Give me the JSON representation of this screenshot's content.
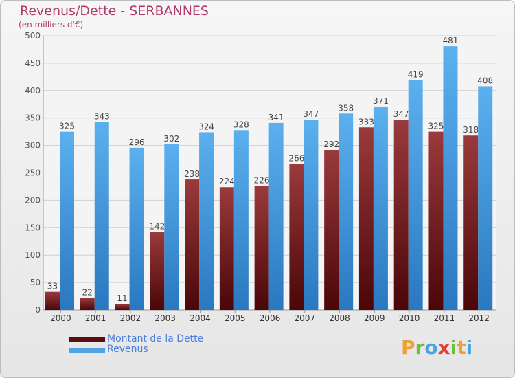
{
  "chart_data": {
    "type": "bar",
    "title": "Revenus/Dette - SERBANNES",
    "subtitle": "(en milliers d'€)",
    "categories": [
      "2000",
      "2001",
      "2002",
      "2003",
      "2004",
      "2005",
      "2006",
      "2007",
      "2008",
      "2009",
      "2010",
      "2011",
      "2012"
    ],
    "series": [
      {
        "name": "Montant de la Dette",
        "color": "#7a1f23",
        "values": [
          33,
          22,
          11,
          142,
          238,
          224,
          226,
          266,
          292,
          333,
          347,
          325,
          318
        ]
      },
      {
        "name": "Revenus",
        "color": "#4ea3e4",
        "values": [
          325,
          343,
          296,
          302,
          324,
          328,
          341,
          347,
          358,
          371,
          419,
          481,
          408
        ]
      }
    ],
    "ylim": [
      0,
      500
    ],
    "yticks": [
      0,
      50,
      100,
      150,
      200,
      250,
      300,
      350,
      400,
      450,
      500
    ],
    "grid": true,
    "legend_position": "bottom-left"
  },
  "legend": {
    "items": [
      {
        "label": "Montant de la Dette",
        "color": "#5a0d10"
      },
      {
        "label": "Revenus",
        "color": "#4ea3e4"
      }
    ]
  },
  "logo": {
    "text": "Proxiti",
    "letters": [
      "P",
      "r",
      "o",
      "x",
      "i",
      "t",
      "i"
    ],
    "colors": [
      "#f0a030",
      "#6cbf3c",
      "#4aa3df",
      "#e0403a",
      "#6cbf3c",
      "#f0a030",
      "#4aa3df"
    ]
  }
}
